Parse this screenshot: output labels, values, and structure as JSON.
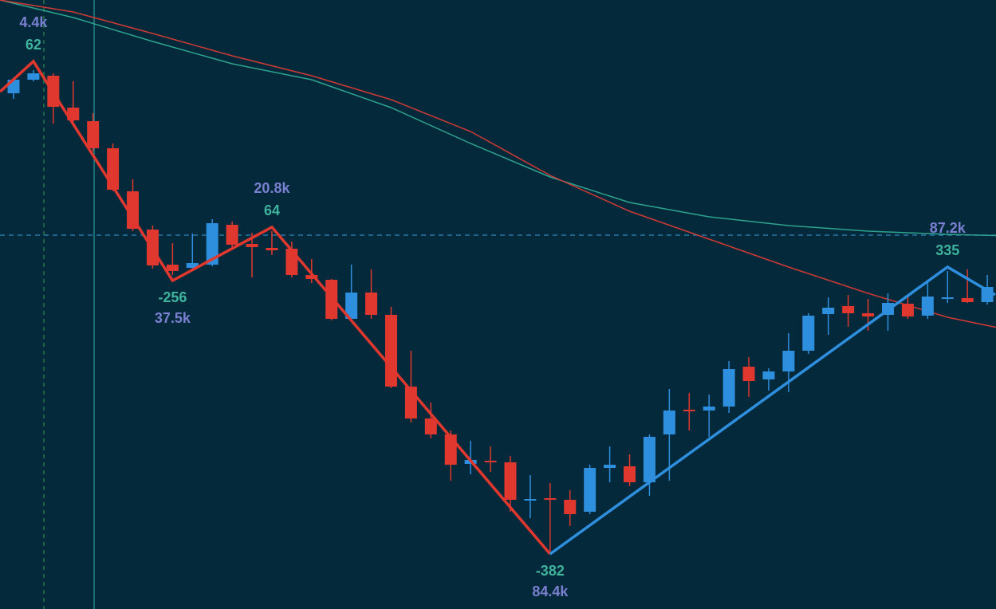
{
  "chart_data": {
    "type": "candlestick",
    "ylim": [
      0,
      764
    ],
    "up_color": "#2f8fdf",
    "down_color": "#e0372e",
    "open": [
      647,
      664,
      669,
      629,
      612,
      578,
      524,
      476,
      432,
      428,
      432,
      482,
      458,
      453,
      452,
      419,
      413,
      364,
      397,
      369,
      279,
      239,
      219,
      182,
      186,
      184,
      137,
      139,
      137,
      122,
      177,
      179,
      159,
      219,
      250,
      249,
      254,
      304,
      288,
      298,
      324,
      370,
      380,
      371,
      369,
      383,
      368,
      390,
      390,
      385
    ],
    "high": [
      667,
      676,
      672,
      662,
      622,
      584,
      539,
      481,
      459,
      471,
      489,
      486,
      472,
      474,
      461,
      439,
      414,
      432,
      426,
      379,
      324,
      259,
      224,
      211,
      204,
      192,
      168,
      158,
      149,
      181,
      204,
      194,
      219,
      276,
      271,
      269,
      311,
      316,
      302,
      346,
      371,
      391,
      394,
      389,
      396,
      394,
      412,
      424,
      426,
      419
    ],
    "low": [
      640,
      662,
      609,
      606,
      574,
      524,
      474,
      427,
      419,
      424,
      430,
      454,
      416,
      444,
      416,
      409,
      362,
      362,
      364,
      277,
      234,
      214,
      161,
      169,
      172,
      122,
      114,
      69,
      104,
      119,
      159,
      154,
      142,
      161,
      224,
      216,
      246,
      266,
      274,
      272,
      320,
      344,
      354,
      349,
      349,
      364,
      364,
      384,
      384,
      382
    ],
    "close": [
      664,
      672,
      630,
      613,
      578,
      526,
      477,
      431,
      424,
      434,
      484,
      457,
      454,
      450,
      419,
      414,
      364,
      397,
      369,
      279,
      239,
      219,
      181,
      187,
      184,
      137,
      138,
      137,
      119,
      177,
      181,
      159,
      216,
      249,
      248,
      254,
      301,
      286,
      298,
      324,
      368,
      378,
      371,
      367,
      384,
      367,
      392,
      391,
      385,
      404
    ],
    "moving_averages": [
      {
        "color": "#2fa38f",
        "x": [
          -0.7,
          3,
          7,
          11,
          15,
          19,
          23,
          27,
          31,
          35,
          39,
          43,
          47,
          50.3
        ],
        "values": [
          764,
          742,
          712,
          684,
          664,
          629,
          584,
          542,
          510,
          492,
          481,
          474,
          470,
          468
        ]
      },
      {
        "color": "#d03a35",
        "x": [
          -0.7,
          3,
          7,
          11,
          15,
          19,
          23,
          27,
          31,
          35,
          39,
          43,
          47,
          50.3
        ],
        "values": [
          764,
          749,
          722,
          694,
          669,
          639,
          599,
          544,
          499,
          464,
          429,
          396,
          366,
          349
        ]
      }
    ],
    "zigzag": [
      {
        "color": "#e0372e",
        "x": [
          -0.68,
          1,
          8,
          13,
          27
        ],
        "values": [
          649,
          687,
          412,
          479,
          69
        ]
      },
      {
        "color": "#2f8fdf",
        "x": [
          27,
          47,
          49.4
        ],
        "values": [
          69,
          429,
          394
        ]
      }
    ],
    "pivots": [
      {
        "x": 1,
        "y": 687,
        "volume": "4.4k",
        "change": 62
      },
      {
        "x": 8,
        "y": 412,
        "volume": "37.5k",
        "change": -256
      },
      {
        "x": 13,
        "y": 479,
        "volume": "20.8k",
        "change": 64
      },
      {
        "x": 27,
        "y": 69,
        "volume": "84.4k",
        "change": -382
      },
      {
        "x": 47,
        "y": 429,
        "volume": "87.2k",
        "change": 335
      }
    ]
  }
}
